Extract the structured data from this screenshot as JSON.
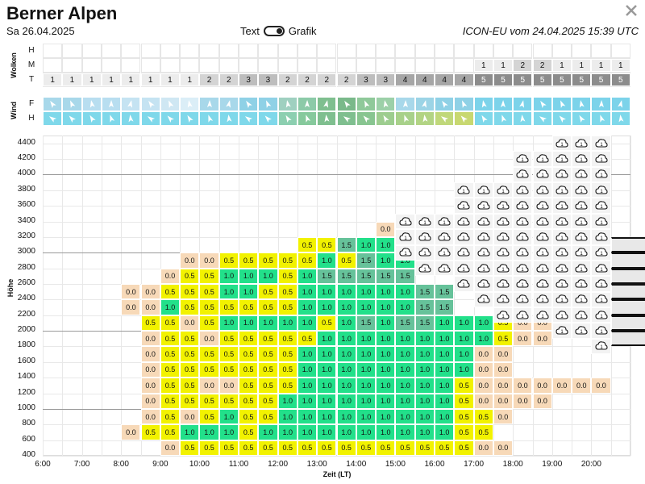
{
  "header": {
    "title": "Berner Alpen",
    "date": "Sa 26.04.2025",
    "toggle_text": "Text",
    "toggle_grafik": "Grafik",
    "model": "ICON-EU vom 24.04.2025 15:39 UTC"
  },
  "clouds": {
    "section_label": "Wolken",
    "row_labels": [
      "H",
      "M",
      "T"
    ],
    "M": [
      "",
      "",
      "",
      "",
      "",
      "",
      "",
      "",
      "",
      "",
      "",
      "",
      "",
      "",
      "",
      "",
      "",
      "",
      "",
      "",
      "",
      "",
      "1",
      "1",
      "2",
      "2",
      "1",
      "1",
      "1",
      "1"
    ],
    "T": [
      "1",
      "1",
      "1",
      "1",
      "1",
      "1",
      "1",
      "1",
      "2",
      "2",
      "3",
      "3",
      "2",
      "2",
      "2",
      "2",
      "3",
      "3",
      "4",
      "4",
      "4",
      "4",
      "5",
      "5",
      "5",
      "5",
      "5",
      "5",
      "5",
      "5"
    ]
  },
  "wind": {
    "section_label": "Wind",
    "row_labels": [
      "F",
      "H"
    ]
  },
  "main": {
    "y_axis_label": "Höhe",
    "x_axis_label": "Zeit (LT)",
    "y_ticks": [
      "4400",
      "4200",
      "4000",
      "3800",
      "3600",
      "3400",
      "3200",
      "3000",
      "2800",
      "2600",
      "2400",
      "2200",
      "2000",
      "1800",
      "1600",
      "1400",
      "1200",
      "1000",
      "800",
      "600",
      "400"
    ],
    "x_ticks": [
      "6:00",
      "7:00",
      "8:00",
      "9:00",
      "10:00",
      "11:00",
      "12:00",
      "13:00",
      "14:00",
      "15:00",
      "16:00",
      "17:00",
      "18:00",
      "19:00",
      "20:00"
    ]
  },
  "chart_data": {
    "type": "heatmap",
    "xlabel": "Zeit (LT)",
    "ylabel": "Höhe",
    "rows_altitude_m": [
      3300,
      3100,
      2900,
      2700,
      2500,
      2300,
      2100,
      1900,
      1700,
      1500,
      1300,
      1100,
      900,
      700,
      500
    ],
    "start_col": [
      17,
      13,
      7,
      6,
      4,
      4,
      5,
      5,
      5,
      5,
      5,
      5,
      5,
      4,
      6
    ],
    "values": [
      [
        "0.0",
        "1.0",
        "1.0"
      ],
      [
        "0.5",
        "0.5",
        "1.5",
        "1.0",
        "1.0",
        "1.5"
      ],
      [
        "0.0",
        "0.0",
        "0.5",
        "0.5",
        "0.5",
        "0.5",
        "0.5",
        "1.0",
        "0.5",
        "1.5",
        "1.0",
        "1.0",
        "1.5"
      ],
      [
        "0.0",
        "0.5",
        "0.5",
        "1.0",
        "1.0",
        "1.0",
        "0.5",
        "1.0",
        "1.5",
        "1.5",
        "1.5",
        "1.5",
        "1.5"
      ],
      [
        "0.0",
        "0.0",
        "0.5",
        "0.5",
        "0.5",
        "1.0",
        "1.0",
        "0.5",
        "0.5",
        "1.0",
        "1.0",
        "1.0",
        "1.0",
        "1.0",
        "1.0",
        "1.5",
        "1.5"
      ],
      [
        "0.0",
        "0.0",
        "1.0",
        "0.5",
        "0.5",
        "0.5",
        "0.5",
        "0.5",
        "0.5",
        "1.0",
        "1.0",
        "1.0",
        "1.0",
        "1.0",
        "1.0",
        "1.5",
        "1.5"
      ],
      [
        "0.5",
        "0.5",
        "0.0",
        "0.5",
        "1.0",
        "1.0",
        "1.0",
        "1.0",
        "1.0",
        "0.5",
        "1.0",
        "1.5",
        "1.0",
        "1.5",
        "1.5",
        "1.0",
        "1.0",
        "1.0",
        "0.5",
        "0.0",
        "0.0"
      ],
      [
        "0.0",
        "0.5",
        "0.5",
        "0.0",
        "0.5",
        "0.5",
        "0.5",
        "0.5",
        "0.5",
        "1.0",
        "1.0",
        "1.0",
        "1.0",
        "1.0",
        "1.0",
        "1.0",
        "1.0",
        "1.0",
        "0.5",
        "0.0",
        "0.0"
      ],
      [
        "0.0",
        "0.5",
        "0.5",
        "0.5",
        "0.5",
        "0.5",
        "0.5",
        "0.5",
        "1.0",
        "1.0",
        "1.0",
        "1.0",
        "1.0",
        "1.0",
        "1.0",
        "1.0",
        "1.0",
        "0.0",
        "0.0"
      ],
      [
        "0.0",
        "0.5",
        "0.5",
        "0.5",
        "0.5",
        "0.5",
        "0.5",
        "0.5",
        "1.0",
        "1.0",
        "1.0",
        "1.0",
        "1.0",
        "1.0",
        "1.0",
        "1.0",
        "1.0",
        "0.0",
        "0.0"
      ],
      [
        "0.0",
        "0.5",
        "0.5",
        "0.0",
        "0.0",
        "0.5",
        "0.5",
        "0.5",
        "1.0",
        "1.0",
        "1.0",
        "1.0",
        "1.0",
        "1.0",
        "1.0",
        "1.0",
        "0.5",
        "0.0",
        "0.0",
        "0.0",
        "0.0",
        "0.0",
        "0.0",
        "0.0"
      ],
      [
        "0.0",
        "0.5",
        "0.5",
        "0.5",
        "0.5",
        "0.5",
        "0.5",
        "1.0",
        "1.0",
        "1.0",
        "1.0",
        "1.0",
        "1.0",
        "1.0",
        "1.0",
        "1.0",
        "0.5",
        "0.0",
        "0.0",
        "0.0",
        "0.0"
      ],
      [
        "0.0",
        "0.5",
        "0.0",
        "0.5",
        "1.0",
        "0.5",
        "0.5",
        "1.0",
        "1.0",
        "1.0",
        "1.0",
        "1.0",
        "1.0",
        "1.0",
        "1.0",
        "1.0",
        "0.5",
        "0.5",
        "0.0"
      ],
      [
        "0.0",
        "0.5",
        "0.5",
        "1.0",
        "1.0",
        "1.0",
        "0.5",
        "1.0",
        "1.0",
        "1.0",
        "1.0",
        "1.0",
        "1.0",
        "1.0",
        "1.0",
        "1.0",
        "1.0",
        "0.5",
        "0.5"
      ],
      [
        "0.0",
        "0.5",
        "0.5",
        "0.5",
        "0.5",
        "0.5",
        "0.5",
        "0.5",
        "0.5",
        "0.5",
        "0.5",
        "0.5",
        "0.5",
        "0.5",
        "0.5",
        "0.5",
        "0.0",
        "0.0"
      ]
    ],
    "color_scale": {
      "0.0": "#f7d9b8",
      "0.5": "#f2f200",
      "1.0": "#22e08a",
      "1.5": "#66c29a"
    }
  }
}
